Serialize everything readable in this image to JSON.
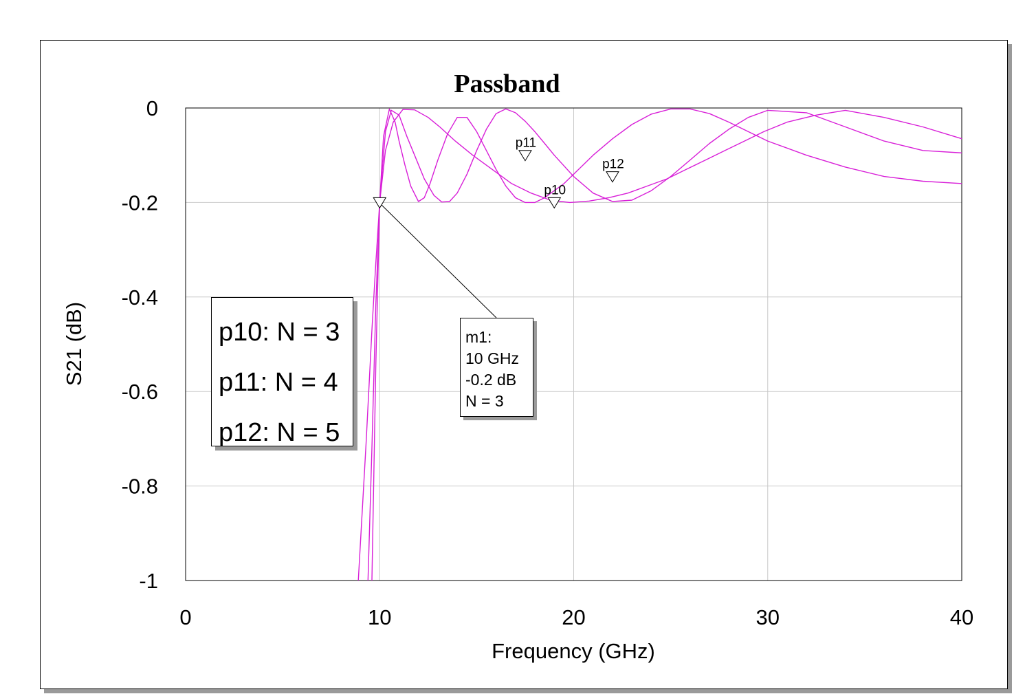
{
  "chart_data": {
    "type": "line",
    "title": "Passband",
    "xlabel": "Frequency (GHz)",
    "ylabel": "S21 (dB)",
    "xlim": [
      0,
      40
    ],
    "ylim": [
      -1,
      0
    ],
    "xticks": [
      "0",
      "10",
      "20",
      "30",
      "40"
    ],
    "yticks": [
      "0",
      "-0.2",
      "-0.4",
      "-0.6",
      "-0.8",
      "-1"
    ],
    "xtick_values": [
      0,
      10,
      20,
      30,
      40
    ],
    "ytick_values": [
      0,
      -0.2,
      -0.4,
      -0.6,
      -0.8,
      -1
    ],
    "grid": true,
    "series_color": "#d81fd8",
    "series": [
      {
        "name": "p10",
        "x": [
          8.9,
          9.3,
          9.6,
          9.8,
          10.0,
          10.3,
          10.7,
          11.2,
          11.8,
          12.5,
          13.1,
          13.9,
          14.8,
          15.8,
          16.8,
          17.8,
          18.8,
          19.8,
          20.8,
          21.8,
          22.8,
          23.8,
          24.8,
          25.8,
          26.8,
          27.8,
          28.8,
          29.8,
          31.0,
          32.5,
          34.0,
          36.0,
          38.0,
          40.0
        ],
        "y": [
          -1.0,
          -0.71,
          -0.47,
          -0.33,
          -0.2,
          -0.09,
          -0.03,
          -0.003,
          -0.004,
          -0.02,
          -0.04,
          -0.07,
          -0.1,
          -0.13,
          -0.16,
          -0.18,
          -0.195,
          -0.2,
          -0.197,
          -0.19,
          -0.18,
          -0.165,
          -0.15,
          -0.13,
          -0.11,
          -0.09,
          -0.07,
          -0.05,
          -0.03,
          -0.015,
          -0.005,
          -0.02,
          -0.04,
          -0.065
        ]
      },
      {
        "name": "p11",
        "x": [
          9.4,
          9.6,
          9.8,
          10.0,
          10.3,
          10.6,
          11.0,
          11.4,
          11.8,
          12.3,
          12.8,
          13.2,
          13.6,
          14.0,
          14.5,
          15.0,
          15.5,
          16.0,
          16.5,
          17.0,
          17.5,
          18.0,
          18.5,
          19.0,
          20.0,
          21.0,
          22.0,
          23.0,
          24.0,
          25.0,
          26.0,
          27.0,
          28.0,
          29.0,
          30.0,
          32.0,
          34.0,
          36.0,
          38.0,
          40.0
        ],
        "y": [
          -1.0,
          -0.72,
          -0.42,
          -0.2,
          -0.05,
          -0.005,
          -0.015,
          -0.06,
          -0.1,
          -0.15,
          -0.185,
          -0.199,
          -0.198,
          -0.18,
          -0.14,
          -0.09,
          -0.045,
          -0.012,
          -0.002,
          -0.01,
          -0.028,
          -0.05,
          -0.075,
          -0.1,
          -0.145,
          -0.18,
          -0.198,
          -0.195,
          -0.175,
          -0.145,
          -0.11,
          -0.075,
          -0.045,
          -0.02,
          -0.005,
          -0.01,
          -0.04,
          -0.07,
          -0.09,
          -0.095
        ]
      },
      {
        "name": "p12",
        "x": [
          9.6,
          9.8,
          10.0,
          10.2,
          10.5,
          10.8,
          11.0,
          11.3,
          11.6,
          12.0,
          12.3,
          12.6,
          13.0,
          13.5,
          14.0,
          14.5,
          15.0,
          15.5,
          16.0,
          16.5,
          17.0,
          17.5,
          18.0,
          18.5,
          19.0,
          19.5,
          20.0,
          21.0,
          22.0,
          23.0,
          24.0,
          25.0,
          26.0,
          27.0,
          28.0,
          29.0,
          30.0,
          32.0,
          34.0,
          36.0,
          38.0,
          40.0
        ],
        "y": [
          -1.0,
          -0.55,
          -0.2,
          -0.06,
          -0.002,
          -0.03,
          -0.07,
          -0.12,
          -0.165,
          -0.198,
          -0.19,
          -0.16,
          -0.11,
          -0.055,
          -0.02,
          -0.02,
          -0.05,
          -0.09,
          -0.13,
          -0.165,
          -0.19,
          -0.2,
          -0.2,
          -0.19,
          -0.175,
          -0.16,
          -0.14,
          -0.1,
          -0.065,
          -0.035,
          -0.013,
          -0.002,
          -0.002,
          -0.012,
          -0.03,
          -0.05,
          -0.07,
          -0.1,
          -0.125,
          -0.145,
          -0.155,
          -0.16
        ]
      }
    ],
    "markers": [
      {
        "label": "p10",
        "x": 19.0,
        "y": -0.2
      },
      {
        "label": "p11",
        "x": 17.5,
        "y": -0.1
      },
      {
        "label": "p12",
        "x": 22.0,
        "y": -0.145
      },
      {
        "label": "",
        "x": 10.0,
        "y": -0.2
      }
    ]
  },
  "legend": {
    "p10": "p10: N = 3",
    "p11": "p11: N = 4",
    "p12": "p12: N = 5"
  },
  "marker_box": {
    "name": "m1:",
    "freq": "10 GHz",
    "value": "-0.2 dB",
    "param": "N = 3"
  }
}
